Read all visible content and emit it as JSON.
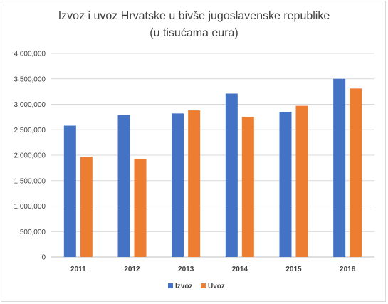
{
  "chart_data": {
    "type": "bar",
    "title_line1": "Izvoz i uvoz Hrvatske u bivše jugoslavenske republike",
    "title_line2": "(u tisućama eura)",
    "categories": [
      "2011",
      "2012",
      "2013",
      "2014",
      "2015",
      "2016"
    ],
    "series": [
      {
        "name": "Izvoz",
        "color": "#4472c4",
        "values": [
          2580000,
          2790000,
          2820000,
          3210000,
          2850000,
          3500000
        ]
      },
      {
        "name": "Uvoz",
        "color": "#ed7d31",
        "values": [
          1970000,
          1920000,
          2880000,
          2750000,
          2970000,
          3310000
        ]
      }
    ],
    "yticks": [
      "0",
      "500,000",
      "1,000,000",
      "1,500,000",
      "2,000,000",
      "2,500,000",
      "3,000,000",
      "3,500,000",
      "4,000,000"
    ],
    "ylim": [
      0,
      4000000
    ],
    "grid": true,
    "legend": "bottom"
  }
}
